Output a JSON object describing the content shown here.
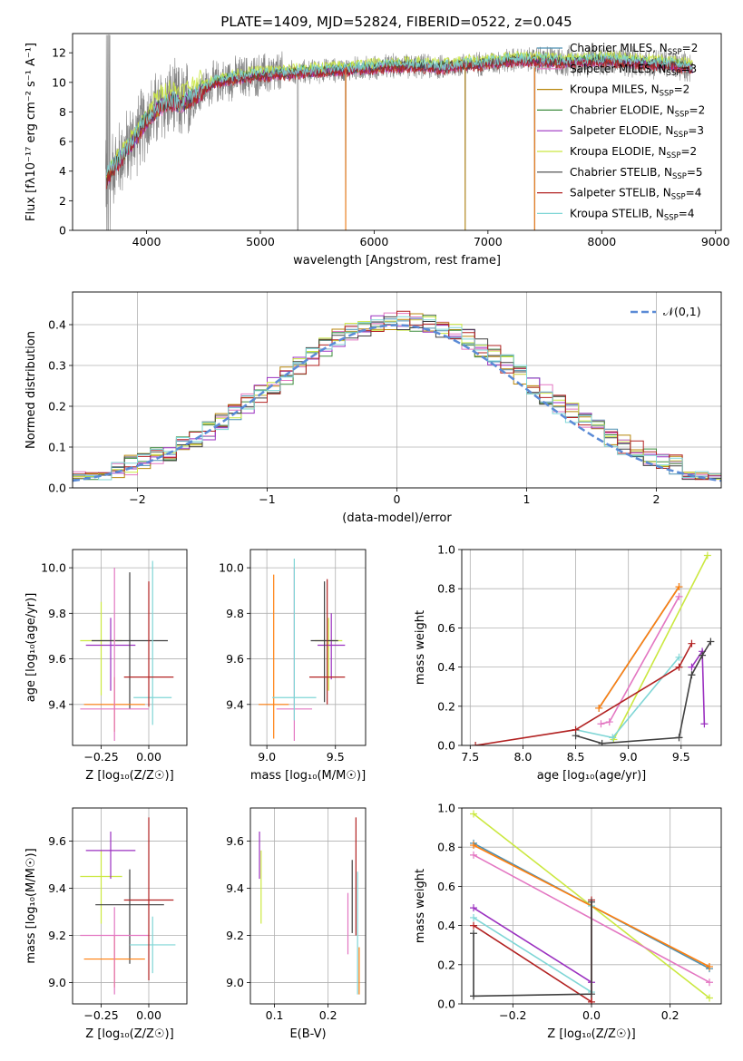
{
  "figure": {
    "title": "PLATE=1409, MJD=52824, FIBERID=0522, z=0.045"
  },
  "chart_data": [
    {
      "id": "spectrum",
      "type": "line",
      "title": "PLATE=1409, MJD=52824, FIBERID=0522, z=0.045",
      "xlabel": "wavelength [Angstrom, rest frame]",
      "ylabel": "Flux [fλ10⁻¹⁷ erg cm⁻² s⁻¹ A⁻¹]",
      "xlim": [
        3350,
        9050
      ],
      "ylim": [
        0,
        13.3
      ],
      "xticks": [
        4000,
        5000,
        6000,
        7000,
        8000,
        9000
      ],
      "yticks": [
        0,
        2,
        4,
        6,
        8,
        10,
        12
      ],
      "grid": false,
      "legend_position": "top-right",
      "observed": {
        "color": "#808080",
        "x": [
          3650,
          3700,
          3800,
          3900,
          4000,
          4100,
          4200,
          4300,
          4400,
          4500,
          4600,
          4800,
          5000,
          5200,
          5400,
          5600,
          5800,
          6000,
          6200,
          6400,
          6600,
          6800,
          7000,
          7200,
          7400,
          7600,
          7800,
          8000,
          8200,
          8400,
          8600,
          8800
        ],
        "y": [
          3.5,
          4.2,
          5.2,
          6.3,
          7.5,
          8.2,
          8.8,
          8.5,
          9.0,
          9.5,
          10.0,
          10.3,
          10.5,
          10.6,
          10.7,
          10.8,
          10.9,
          11.0,
          11.1,
          11.1,
          11.0,
          11.2,
          11.3,
          11.5,
          11.5,
          11.4,
          11.4,
          11.5,
          11.4,
          11.3,
          11.2,
          11.0
        ]
      },
      "series": [
        {
          "name": "Chabrier MILES, N_SSP=2",
          "color": "#4c8fb0",
          "offset": 0.0
        },
        {
          "name": "Salpeter MILES, N_SSP=3",
          "color": "#e377c2",
          "offset": -0.1
        },
        {
          "name": "Kroupa MILES, N_SSP=2",
          "color": "#b8860b",
          "offset": 0.05
        },
        {
          "name": "Chabrier ELODIE, N_SSP=2",
          "color": "#3c8c3c",
          "offset": 0.1
        },
        {
          "name": "Salpeter ELODIE, N_SSP=3",
          "color": "#9b30c0",
          "offset": -0.05
        },
        {
          "name": "Kroupa ELODIE, N_SSP=2",
          "color": "#cbe840",
          "offset": 0.3
        },
        {
          "name": "Chabrier STELIB, N_SSP=5",
          "color": "#404040",
          "offset": 0.0
        },
        {
          "name": "Salpeter STELIB, N_SSP=4",
          "color": "#b22222",
          "offset": -0.15
        },
        {
          "name": "Kroupa STELIB, N_SSP=4",
          "color": "#7fd6d6",
          "offset": 0.15
        }
      ],
      "legend_labels": [
        "Chabrier MILES, N",
        "Salpeter MILES, N",
        "Kroupa MILES, N",
        "Chabrier ELODIE, N",
        "Salpeter ELODIE, N",
        "Kroupa ELODIE, N",
        "Chabrier STELIB, N",
        "Salpeter STELIB, N",
        "Kroupa STELIB, N"
      ],
      "legend_sub": "SSP",
      "legend_counts": [
        "=2",
        "=3",
        "=2",
        "=2",
        "=3",
        "=2",
        "=5",
        "=4",
        "=4"
      ]
    },
    {
      "id": "residuals",
      "type": "bar",
      "xlabel": "(data-model)/error",
      "ylabel": "Normed distribution",
      "xlim": [
        -2.5,
        2.5
      ],
      "ylim": [
        0,
        0.48
      ],
      "xticks": [
        -2,
        -1,
        0,
        1,
        2
      ],
      "yticks": [
        0.0,
        0.1,
        0.2,
        0.3,
        0.4
      ],
      "grid": true,
      "legend_position": "top-right",
      "reference": {
        "name": "𝒩(0,1)",
        "mean": 0,
        "sigma": 1,
        "color": "#5b8bd6"
      },
      "bin_width": 0.1,
      "bin_start": -2.5
    },
    {
      "id": "z-age",
      "type": "scatter",
      "xlabel": "Z [log₁₀(Z/Z☉)]",
      "ylabel": "age  [log₁₀(age/yr)]",
      "xlim": [
        -0.4,
        0.2
      ],
      "ylim": [
        9.22,
        10.08
      ],
      "xticks": [
        -0.25,
        0.0
      ],
      "yticks": [
        9.4,
        9.6,
        9.8,
        10.0
      ],
      "grid": true,
      "points": [
        {
          "x": -0.25,
          "y": 9.68,
          "xerr": [
            0.11,
            0.11
          ],
          "yerr": [
            0.24,
            0.17
          ],
          "color": "#cbe840"
        },
        {
          "x": -0.2,
          "y": 9.66,
          "xerr": [
            0.13,
            0.13
          ],
          "yerr": [
            0.2,
            0.12
          ],
          "color": "#9b30c0"
        },
        {
          "x": -0.1,
          "y": 9.68,
          "xerr": [
            0.2,
            0.2
          ],
          "yerr": [
            0.3,
            0.3
          ],
          "color": "#404040"
        },
        {
          "x": -0.18,
          "y": 9.4,
          "xerr": [
            0.16,
            0.16
          ],
          "yerr": [
            0.12,
            0.12
          ],
          "color": "#ff7f0e"
        },
        {
          "x": -0.18,
          "y": 9.38,
          "xerr": [
            0.18,
            0.18
          ],
          "yerr": [
            0.14,
            0.62
          ],
          "color": "#e377c2"
        },
        {
          "x": 0.02,
          "y": 9.43,
          "xerr": [
            0.1,
            0.1
          ],
          "yerr": [
            0.12,
            0.6
          ],
          "color": "#7fd6d6"
        },
        {
          "x": 0.0,
          "y": 9.52,
          "xerr": [
            0.13,
            0.13
          ],
          "yerr": [
            0.13,
            0.42
          ],
          "color": "#b22222"
        }
      ]
    },
    {
      "id": "mass-age",
      "type": "scatter",
      "xlabel": "mass [log₁₀(M/M☉)]",
      "ylabel": "",
      "xlim": [
        8.88,
        9.72
      ],
      "ylim": [
        9.22,
        10.08
      ],
      "xticks": [
        9.0,
        9.5
      ],
      "yticks": [
        9.4,
        9.6,
        9.8,
        10.0
      ],
      "grid": true,
      "points": [
        {
          "x": 9.45,
          "y": 9.68,
          "xerr": [
            0.1,
            0.1
          ],
          "yerr": [
            0.22,
            0.1
          ],
          "color": "#cbe840"
        },
        {
          "x": 9.47,
          "y": 9.66,
          "xerr": [
            0.1,
            0.1
          ],
          "yerr": [
            0.15,
            0.14
          ],
          "color": "#9b30c0"
        },
        {
          "x": 9.42,
          "y": 9.68,
          "xerr": [
            0.1,
            0.1
          ],
          "yerr": [
            0.27,
            0.26
          ],
          "color": "#404040"
        },
        {
          "x": 9.05,
          "y": 9.4,
          "xerr": [
            0.11,
            0.11
          ],
          "yerr": [
            0.15,
            0.57
          ],
          "color": "#ff7f0e"
        },
        {
          "x": 9.2,
          "y": 9.38,
          "xerr": [
            0.13,
            0.13
          ],
          "yerr": [
            0.14,
            0.62
          ],
          "color": "#e377c2"
        },
        {
          "x": 9.2,
          "y": 9.43,
          "xerr": [
            0.16,
            0.16
          ],
          "yerr": [
            0.1,
            0.61
          ],
          "color": "#7fd6d6"
        },
        {
          "x": 9.44,
          "y": 9.52,
          "xerr": [
            0.13,
            0.13
          ],
          "yerr": [
            0.12,
            0.43
          ],
          "color": "#b22222"
        }
      ]
    },
    {
      "id": "age-weight",
      "type": "line",
      "xlabel": "age  [log₁₀(age/yr)]",
      "ylabel": "mass weight",
      "xlim": [
        7.42,
        9.88
      ],
      "ylim": [
        0,
        1.0
      ],
      "xticks": [
        7.5,
        8.0,
        8.5,
        9.0,
        9.5
      ],
      "yticks": [
        0.0,
        0.2,
        0.4,
        0.6,
        0.8,
        1.0
      ],
      "grid": true,
      "series": [
        {
          "color": "#4c8fb0",
          "x": [
            8.72,
            9.48
          ],
          "y": [
            0.19,
            0.81
          ]
        },
        {
          "color": "#ff7f0e",
          "x": [
            8.72,
            9.48
          ],
          "y": [
            0.19,
            0.81
          ]
        },
        {
          "color": "#e377c2",
          "x": [
            8.74,
            8.82,
            9.48
          ],
          "y": [
            0.11,
            0.12,
            0.76
          ]
        },
        {
          "color": "#cbe840",
          "x": [
            8.86,
            9.75
          ],
          "y": [
            0.03,
            0.97
          ]
        },
        {
          "color": "#7fd6d6",
          "x": [
            8.5,
            8.85,
            9.48
          ],
          "y": [
            0.08,
            0.04,
            0.45
          ]
        },
        {
          "color": "#b22222",
          "x": [
            7.55,
            8.5,
            9.48,
            9.6
          ],
          "y": [
            0.0,
            0.08,
            0.4,
            0.52
          ]
        },
        {
          "color": "#9b30c0",
          "x": [
            9.6,
            9.7,
            9.72
          ],
          "y": [
            0.4,
            0.48,
            0.11
          ]
        },
        {
          "color": "#404040",
          "x": [
            8.5,
            8.75,
            9.48,
            9.6,
            9.7,
            9.78
          ],
          "y": [
            0.05,
            0.01,
            0.04,
            0.36,
            0.46,
            0.53
          ]
        }
      ]
    },
    {
      "id": "z-mass",
      "type": "scatter",
      "xlabel": "Z [log₁₀(Z/Z☉)]",
      "ylabel": "mass [log₁₀(M/M☉)]",
      "xlim": [
        -0.4,
        0.2
      ],
      "ylim": [
        8.91,
        9.74
      ],
      "xticks": [
        -0.25,
        0.0
      ],
      "yticks": [
        9.0,
        9.2,
        9.4,
        9.6
      ],
      "grid": true,
      "points": [
        {
          "x": -0.25,
          "y": 9.45,
          "xerr": [
            0.11,
            0.11
          ],
          "yerr": [
            0.2,
            0.11
          ],
          "color": "#cbe840"
        },
        {
          "x": -0.2,
          "y": 9.56,
          "xerr": [
            0.13,
            0.13
          ],
          "yerr": [
            0.12,
            0.08
          ],
          "color": "#9b30c0"
        },
        {
          "x": -0.1,
          "y": 9.33,
          "xerr": [
            0.18,
            0.18
          ],
          "yerr": [
            0.25,
            0.15
          ],
          "color": "#404040"
        },
        {
          "x": -0.18,
          "y": 9.1,
          "xerr": [
            0.16,
            0.16
          ],
          "yerr": [
            0.12,
            0.1
          ],
          "color": "#ff7f0e"
        },
        {
          "x": -0.18,
          "y": 9.2,
          "xerr": [
            0.18,
            0.18
          ],
          "yerr": [
            0.25,
            0.12
          ],
          "color": "#e377c2"
        },
        {
          "x": 0.02,
          "y": 9.16,
          "xerr": [
            0.12,
            0.12
          ],
          "yerr": [
            0.12,
            0.12
          ],
          "color": "#7fd6d6"
        },
        {
          "x": 0.0,
          "y": 9.35,
          "xerr": [
            0.13,
            0.13
          ],
          "yerr": [
            0.34,
            0.35
          ],
          "color": "#b22222"
        }
      ]
    },
    {
      "id": "ebv-mass",
      "type": "scatter",
      "xlabel": "E(B-V)",
      "ylabel": "",
      "xlim": [
        0.055,
        0.27
      ],
      "ylim": [
        8.91,
        9.74
      ],
      "xticks": [
        0.1,
        0.2
      ],
      "yticks": [
        9.0,
        9.2,
        9.4,
        9.6
      ],
      "grid": true,
      "points": [
        {
          "x": 0.075,
          "y": 9.45,
          "yerr": [
            0.2,
            0.11
          ],
          "color": "#cbe840"
        },
        {
          "x": 0.072,
          "y": 9.56,
          "yerr": [
            0.12,
            0.08
          ],
          "color": "#9b30c0"
        },
        {
          "x": 0.245,
          "y": 9.36,
          "yerr": [
            0.15,
            0.16
          ],
          "color": "#404040"
        },
        {
          "x": 0.258,
          "y": 9.05,
          "yerr": [
            0.1,
            0.1
          ],
          "color": "#ff7f0e"
        },
        {
          "x": 0.237,
          "y": 9.22,
          "yerr": [
            0.1,
            0.16
          ],
          "color": "#e377c2"
        },
        {
          "x": 0.255,
          "y": 9.15,
          "yerr": [
            0.2,
            0.32
          ],
          "color": "#7fd6d6"
        },
        {
          "x": 0.252,
          "y": 9.45,
          "yerr": [
            0.25,
            0.25
          ],
          "color": "#b22222"
        }
      ]
    },
    {
      "id": "z-weight",
      "type": "line",
      "xlabel": "Z [log₁₀(Z/Z☉)]",
      "ylabel": "mass weight",
      "xlim": [
        -0.33,
        0.33
      ],
      "ylim": [
        0,
        1.0
      ],
      "xticks": [
        -0.2,
        0.0,
        0.2
      ],
      "yticks": [
        0.0,
        0.2,
        0.4,
        0.6,
        0.8,
        1.0
      ],
      "grid": true,
      "series": [
        {
          "color": "#cbe840",
          "x": [
            -0.3,
            0.3
          ],
          "y": [
            0.97,
            0.03
          ]
        },
        {
          "color": "#4c8fb0",
          "x": [
            -0.3,
            0.3
          ],
          "y": [
            0.82,
            0.18
          ]
        },
        {
          "color": "#ff7f0e",
          "x": [
            -0.3,
            0.3
          ],
          "y": [
            0.81,
            0.19
          ]
        },
        {
          "color": "#e377c2",
          "x": [
            -0.3,
            0.3
          ],
          "y": [
            0.76,
            0.11
          ]
        },
        {
          "color": "#9b30c0",
          "x": [
            -0.3,
            0.0
          ],
          "y": [
            0.49,
            0.11
          ]
        },
        {
          "color": "#7fd6d6",
          "x": [
            -0.3,
            0.0,
            0.0
          ],
          "y": [
            0.44,
            0.06,
            0.5
          ]
        },
        {
          "color": "#b22222",
          "x": [
            -0.3,
            0.0,
            0.0
          ],
          "y": [
            0.4,
            0.01,
            0.53
          ]
        },
        {
          "color": "#404040",
          "x": [
            -0.3,
            -0.3,
            0.0,
            0.0
          ],
          "y": [
            0.36,
            0.04,
            0.05,
            0.52
          ]
        }
      ]
    }
  ]
}
